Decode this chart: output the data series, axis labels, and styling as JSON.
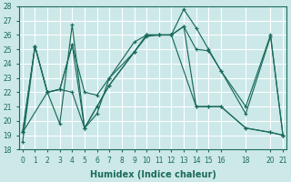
{
  "xlabel": "Humidex (Indice chaleur)",
  "background_color": "#cce8e8",
  "grid_color": "#ffffff",
  "line_color": "#1a6b5a",
  "series": [
    {
      "x": [
        0,
        1,
        2,
        3,
        4,
        5,
        6,
        7,
        9,
        10,
        11,
        12,
        13,
        14,
        15,
        16,
        18,
        20,
        21
      ],
      "y": [
        18.5,
        25.2,
        22.0,
        19.8,
        26.7,
        19.5,
        21.0,
        22.5,
        24.8,
        25.9,
        26.0,
        26.0,
        27.8,
        26.5,
        25.0,
        23.5,
        20.5,
        25.9,
        19.0
      ]
    },
    {
      "x": [
        0,
        1,
        2,
        3,
        4,
        5,
        6,
        7,
        9,
        10,
        11,
        12,
        13,
        14,
        15,
        16,
        18,
        20,
        21
      ],
      "y": [
        19.2,
        25.2,
        22.0,
        22.2,
        25.3,
        22.0,
        21.8,
        23.0,
        25.5,
        26.0,
        26.0,
        26.0,
        26.6,
        25.0,
        24.9,
        23.5,
        21.0,
        26.0,
        19.0
      ]
    },
    {
      "x": [
        0,
        2,
        3,
        4,
        5,
        6,
        7,
        9,
        10,
        11,
        12,
        14,
        15,
        16,
        18,
        20,
        21
      ],
      "y": [
        19.2,
        22.0,
        22.2,
        22.0,
        19.5,
        21.0,
        22.5,
        24.8,
        26.0,
        26.0,
        26.0,
        21.0,
        21.0,
        21.0,
        19.5,
        19.2,
        19.0
      ]
    },
    {
      "x": [
        0,
        1,
        2,
        3,
        4,
        5,
        6,
        7,
        9,
        10,
        11,
        12,
        13,
        14,
        15,
        16,
        18,
        20,
        21
      ],
      "y": [
        19.2,
        25.2,
        22.0,
        22.2,
        25.3,
        19.5,
        20.5,
        23.0,
        24.8,
        26.0,
        26.0,
        26.0,
        26.6,
        21.0,
        21.0,
        21.0,
        19.5,
        19.2,
        19.0
      ]
    }
  ],
  "xlim": [
    -0.3,
    21.3
  ],
  "ylim": [
    18,
    28
  ],
  "yticks": [
    18,
    19,
    20,
    21,
    22,
    23,
    24,
    25,
    26,
    27,
    28
  ],
  "xticks": [
    0,
    1,
    2,
    3,
    4,
    5,
    6,
    7,
    8,
    9,
    10,
    11,
    12,
    13,
    14,
    15,
    16,
    18,
    20,
    21
  ],
  "xlabel_fontsize": 7,
  "tick_fontsize": 5.5
}
